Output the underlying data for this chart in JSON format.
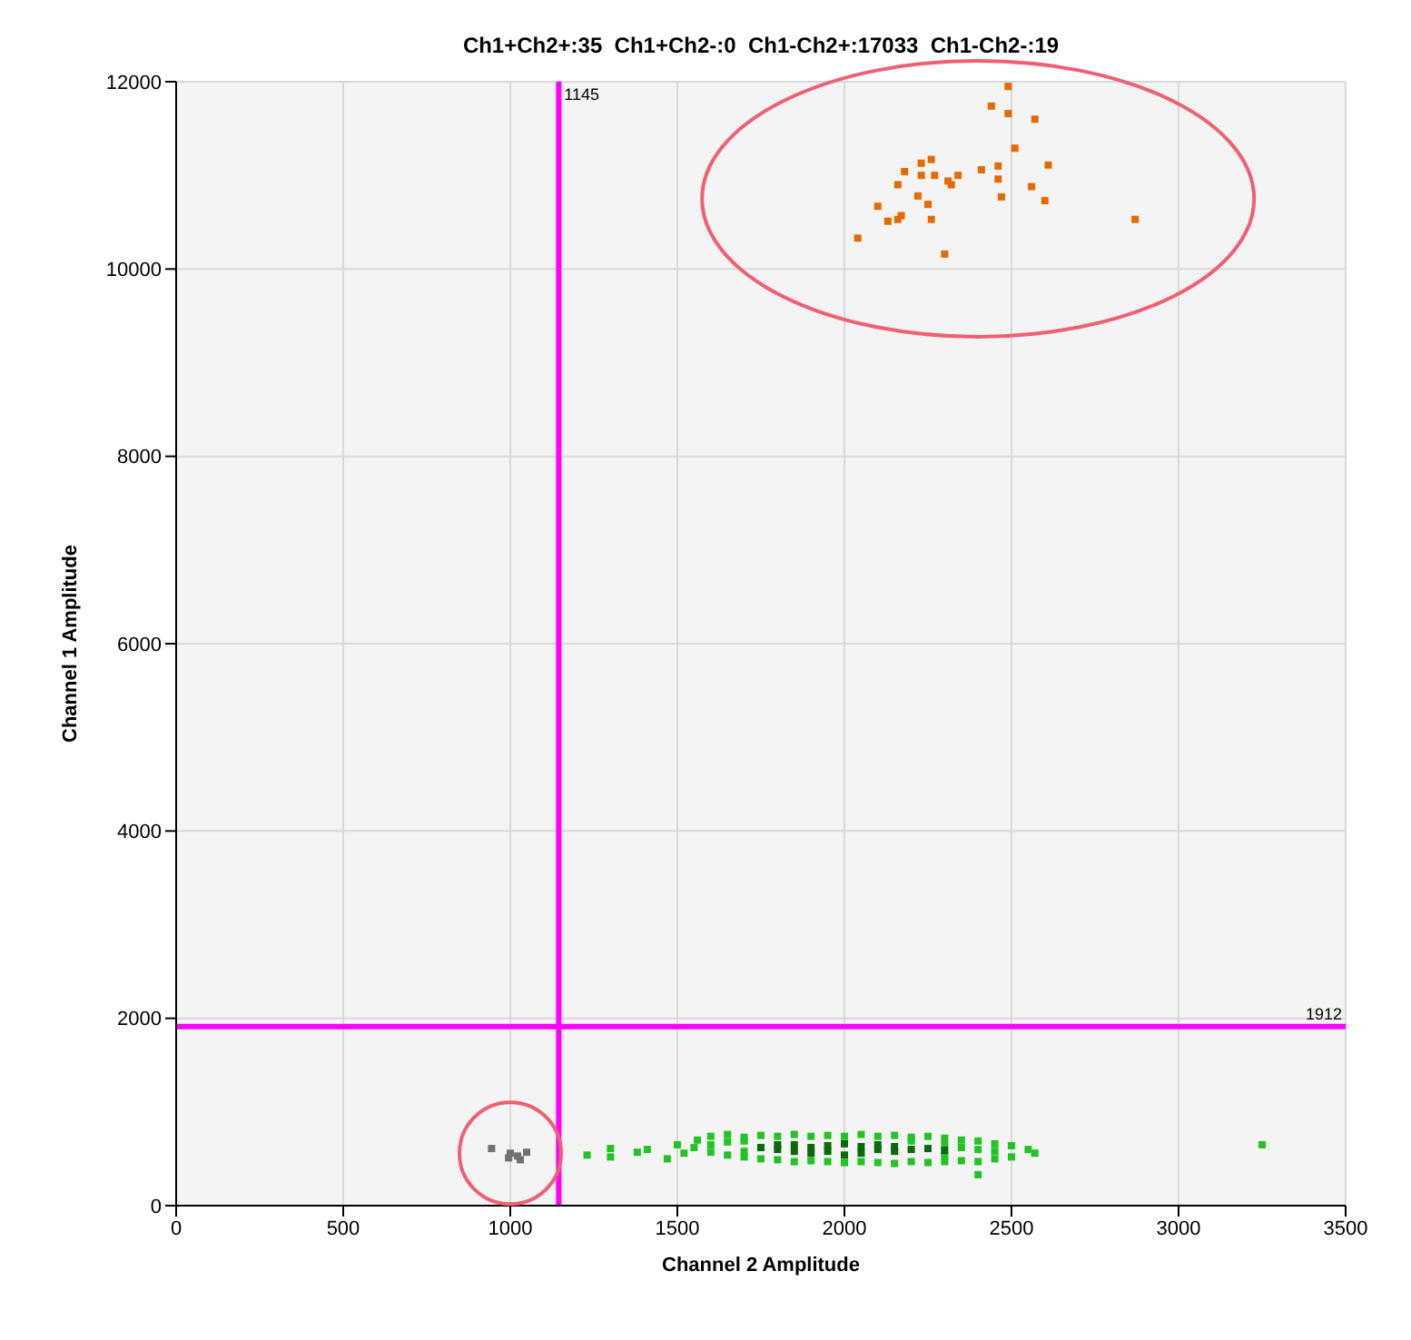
{
  "chart_data": {
    "type": "scatter",
    "title": "Ch1+Ch2+:35  Ch1+Ch2-:0  Ch1-Ch2+:17033  Ch1-Ch2-:19",
    "xlabel": "Channel 2 Amplitude",
    "ylabel": "Channel 1 Amplitude",
    "xlim": [
      0,
      3500
    ],
    "ylim": [
      0,
      12000
    ],
    "xticks": [
      0,
      500,
      1000,
      1500,
      2000,
      2500,
      3000,
      3500
    ],
    "yticks": [
      0,
      2000,
      4000,
      6000,
      8000,
      10000,
      12000
    ],
    "grid": true,
    "marker": "square",
    "series": [
      {
        "color": "#e66a00",
        "x": [
          2490,
          2440,
          2490,
          2570,
          2510,
          2610,
          2260,
          2230,
          2180,
          2230,
          2270,
          2340,
          2410,
          2460,
          2160,
          2310,
          2320,
          2460,
          2560,
          2220,
          2250,
          2470,
          2600,
          2100,
          2130,
          2160,
          2170,
          2260,
          2040,
          2300,
          2870
        ],
        "values": [
          11950,
          11740,
          11660,
          11600,
          11290,
          11110,
          11170,
          11130,
          11040,
          11000,
          11000,
          11000,
          11060,
          11100,
          10900,
          10940,
          10900,
          10960,
          10880,
          10780,
          10690,
          10770,
          10730,
          10670,
          10510,
          10530,
          10570,
          10530,
          10330,
          10160,
          10530
        ]
      },
      {
        "color": "#22c422",
        "x": [
          1230,
          1300,
          1300,
          1380,
          1410,
          1470,
          1500,
          1520,
          1560,
          1600,
          1650,
          1700,
          1750,
          1800,
          1850,
          1900,
          1950,
          2000,
          2050,
          2100,
          2150,
          2200,
          2250,
          2300,
          2350,
          2400,
          2450,
          2500,
          2550,
          2570,
          2500,
          2450,
          2400,
          2350,
          2300,
          2250,
          2200,
          2150,
          2100,
          2050,
          2000,
          1950,
          1900,
          1850,
          1800,
          1750,
          1700,
          1650,
          1600,
          1550,
          2400,
          3250,
          1600,
          1650,
          1700,
          2300,
          2350,
          2400,
          2450,
          2300,
          2200,
          1700
        ],
        "values": [
          540,
          610,
          520,
          570,
          600,
          500,
          650,
          560,
          700,
          740,
          760,
          730,
          750,
          740,
          760,
          740,
          750,
          740,
          760,
          740,
          750,
          730,
          740,
          720,
          700,
          690,
          660,
          640,
          600,
          560,
          520,
          500,
          470,
          480,
          470,
          460,
          470,
          450,
          460,
          470,
          460,
          470,
          480,
          470,
          490,
          500,
          520,
          540,
          570,
          620,
          330,
          650,
          650,
          680,
          690,
          650,
          620,
          600,
          580,
          530,
          690,
          580
        ]
      },
      {
        "color": "#0a6a0a",
        "x": [
          1750,
          1800,
          1850,
          1850,
          1900,
          1900,
          1950,
          1950,
          2000,
          2050,
          2050,
          2100,
          2100,
          2150,
          2150,
          2200,
          2250,
          2300,
          1800,
          2000
        ],
        "values": [
          620,
          600,
          580,
          650,
          620,
          560,
          640,
          580,
          660,
          560,
          630,
          600,
          650,
          580,
          630,
          600,
          610,
          590,
          650,
          540
        ]
      },
      {
        "color": "#707070",
        "x": [
          944,
          995,
          1022,
          1049,
          1030,
          1000
        ],
        "values": [
          610,
          510,
          530,
          570,
          490,
          560
        ]
      }
    ],
    "ref_lines": [
      {
        "axis": "x",
        "value": 1145,
        "label": "1145",
        "color": "#ff00ff"
      },
      {
        "axis": "y",
        "value": 1912,
        "label": "1912",
        "color": "#ff00ff"
      }
    ]
  }
}
